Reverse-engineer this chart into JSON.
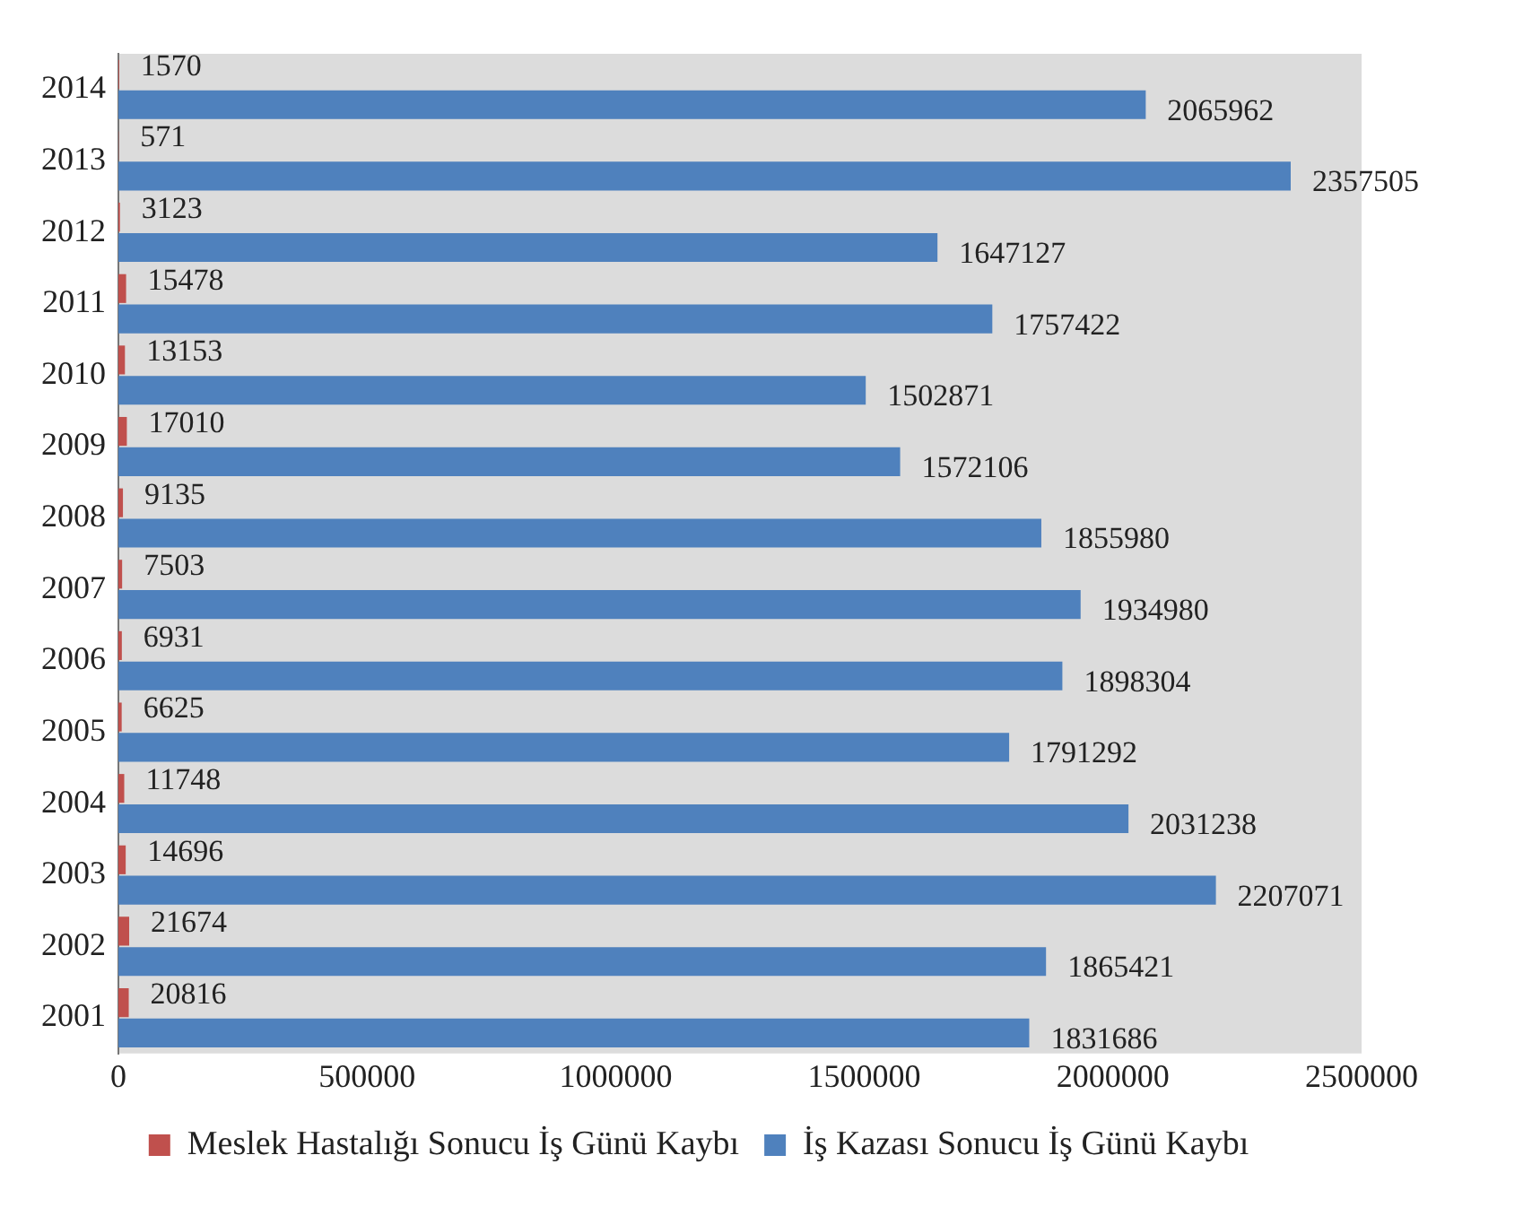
{
  "chart_data": {
    "type": "bar",
    "orientation": "horizontal",
    "categories": [
      "2014",
      "2013",
      "2012",
      "2011",
      "2010",
      "2009",
      "2008",
      "2007",
      "2006",
      "2005",
      "2004",
      "2003",
      "2002",
      "2001"
    ],
    "series": [
      {
        "name": "Meslek Hastalığı Sonucu İş Günü Kaybı",
        "color": "#c0504d",
        "values": [
          1570,
          571,
          3123,
          15478,
          13153,
          17010,
          9135,
          7503,
          6931,
          6625,
          11748,
          14696,
          21674,
          20816
        ]
      },
      {
        "name": "İş Kazası Sonucu İş Günü Kaybı",
        "color": "#4f81bd",
        "values": [
          2065962,
          2357505,
          1647127,
          1757422,
          1502871,
          1572106,
          1855980,
          1934980,
          1898304,
          1791292,
          2031238,
          2207071,
          1865421,
          1831686
        ]
      }
    ],
    "xlim": [
      0,
      2500000
    ],
    "xticks": [
      0,
      500000,
      1000000,
      1500000,
      2000000,
      2500000
    ],
    "grid": false,
    "legend": "bottom",
    "data_labels": true
  }
}
